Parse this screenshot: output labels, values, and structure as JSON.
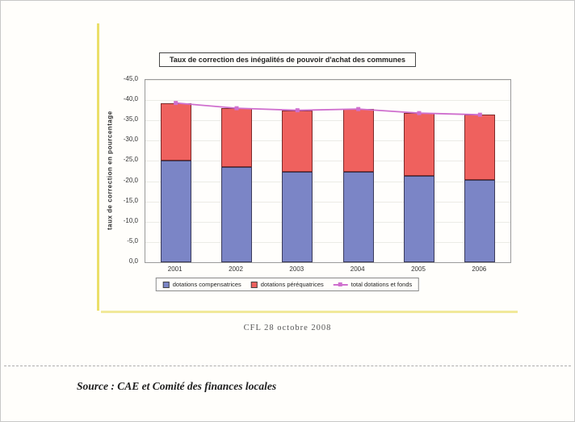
{
  "caption": "CFL 28 octobre 2008",
  "source": "Source : CAE et Comité des finances locales",
  "chart_data": {
    "type": "bar",
    "stacked": true,
    "title": "Taux de correction des inégalités de pouvoir d'achat des communes",
    "ylabel": "taux de correction en pourcentage",
    "categories": [
      "2001",
      "2002",
      "2003",
      "2004",
      "2005",
      "2006"
    ],
    "series": [
      {
        "name": "dotations compensatrices",
        "color": "#7b85c6",
        "values": [
          -25.0,
          -23.4,
          -22.4,
          -22.4,
          -21.4,
          -20.4
        ]
      },
      {
        "name": "dotations péréquatrices",
        "color": "#ef615e",
        "values": [
          -14.3,
          -14.6,
          -15.1,
          -15.4,
          -15.4,
          -16.0
        ]
      }
    ],
    "line_series": {
      "name": "total dotations et fonds",
      "color": "#cf6fce",
      "values": [
        -39.3,
        -38.0,
        -37.5,
        -37.8,
        -36.8,
        -36.4
      ]
    },
    "ylim": [
      0,
      -45
    ],
    "ytick_step": 5,
    "yticks": [
      "0,0",
      "-5,0",
      "-10,0",
      "-15,0",
      "-20,0",
      "-25,0",
      "-30,0",
      "-35,0",
      "-40,0",
      "-45,0"
    ],
    "axis_inverted": true,
    "grid": true,
    "legend_position": "bottom"
  }
}
